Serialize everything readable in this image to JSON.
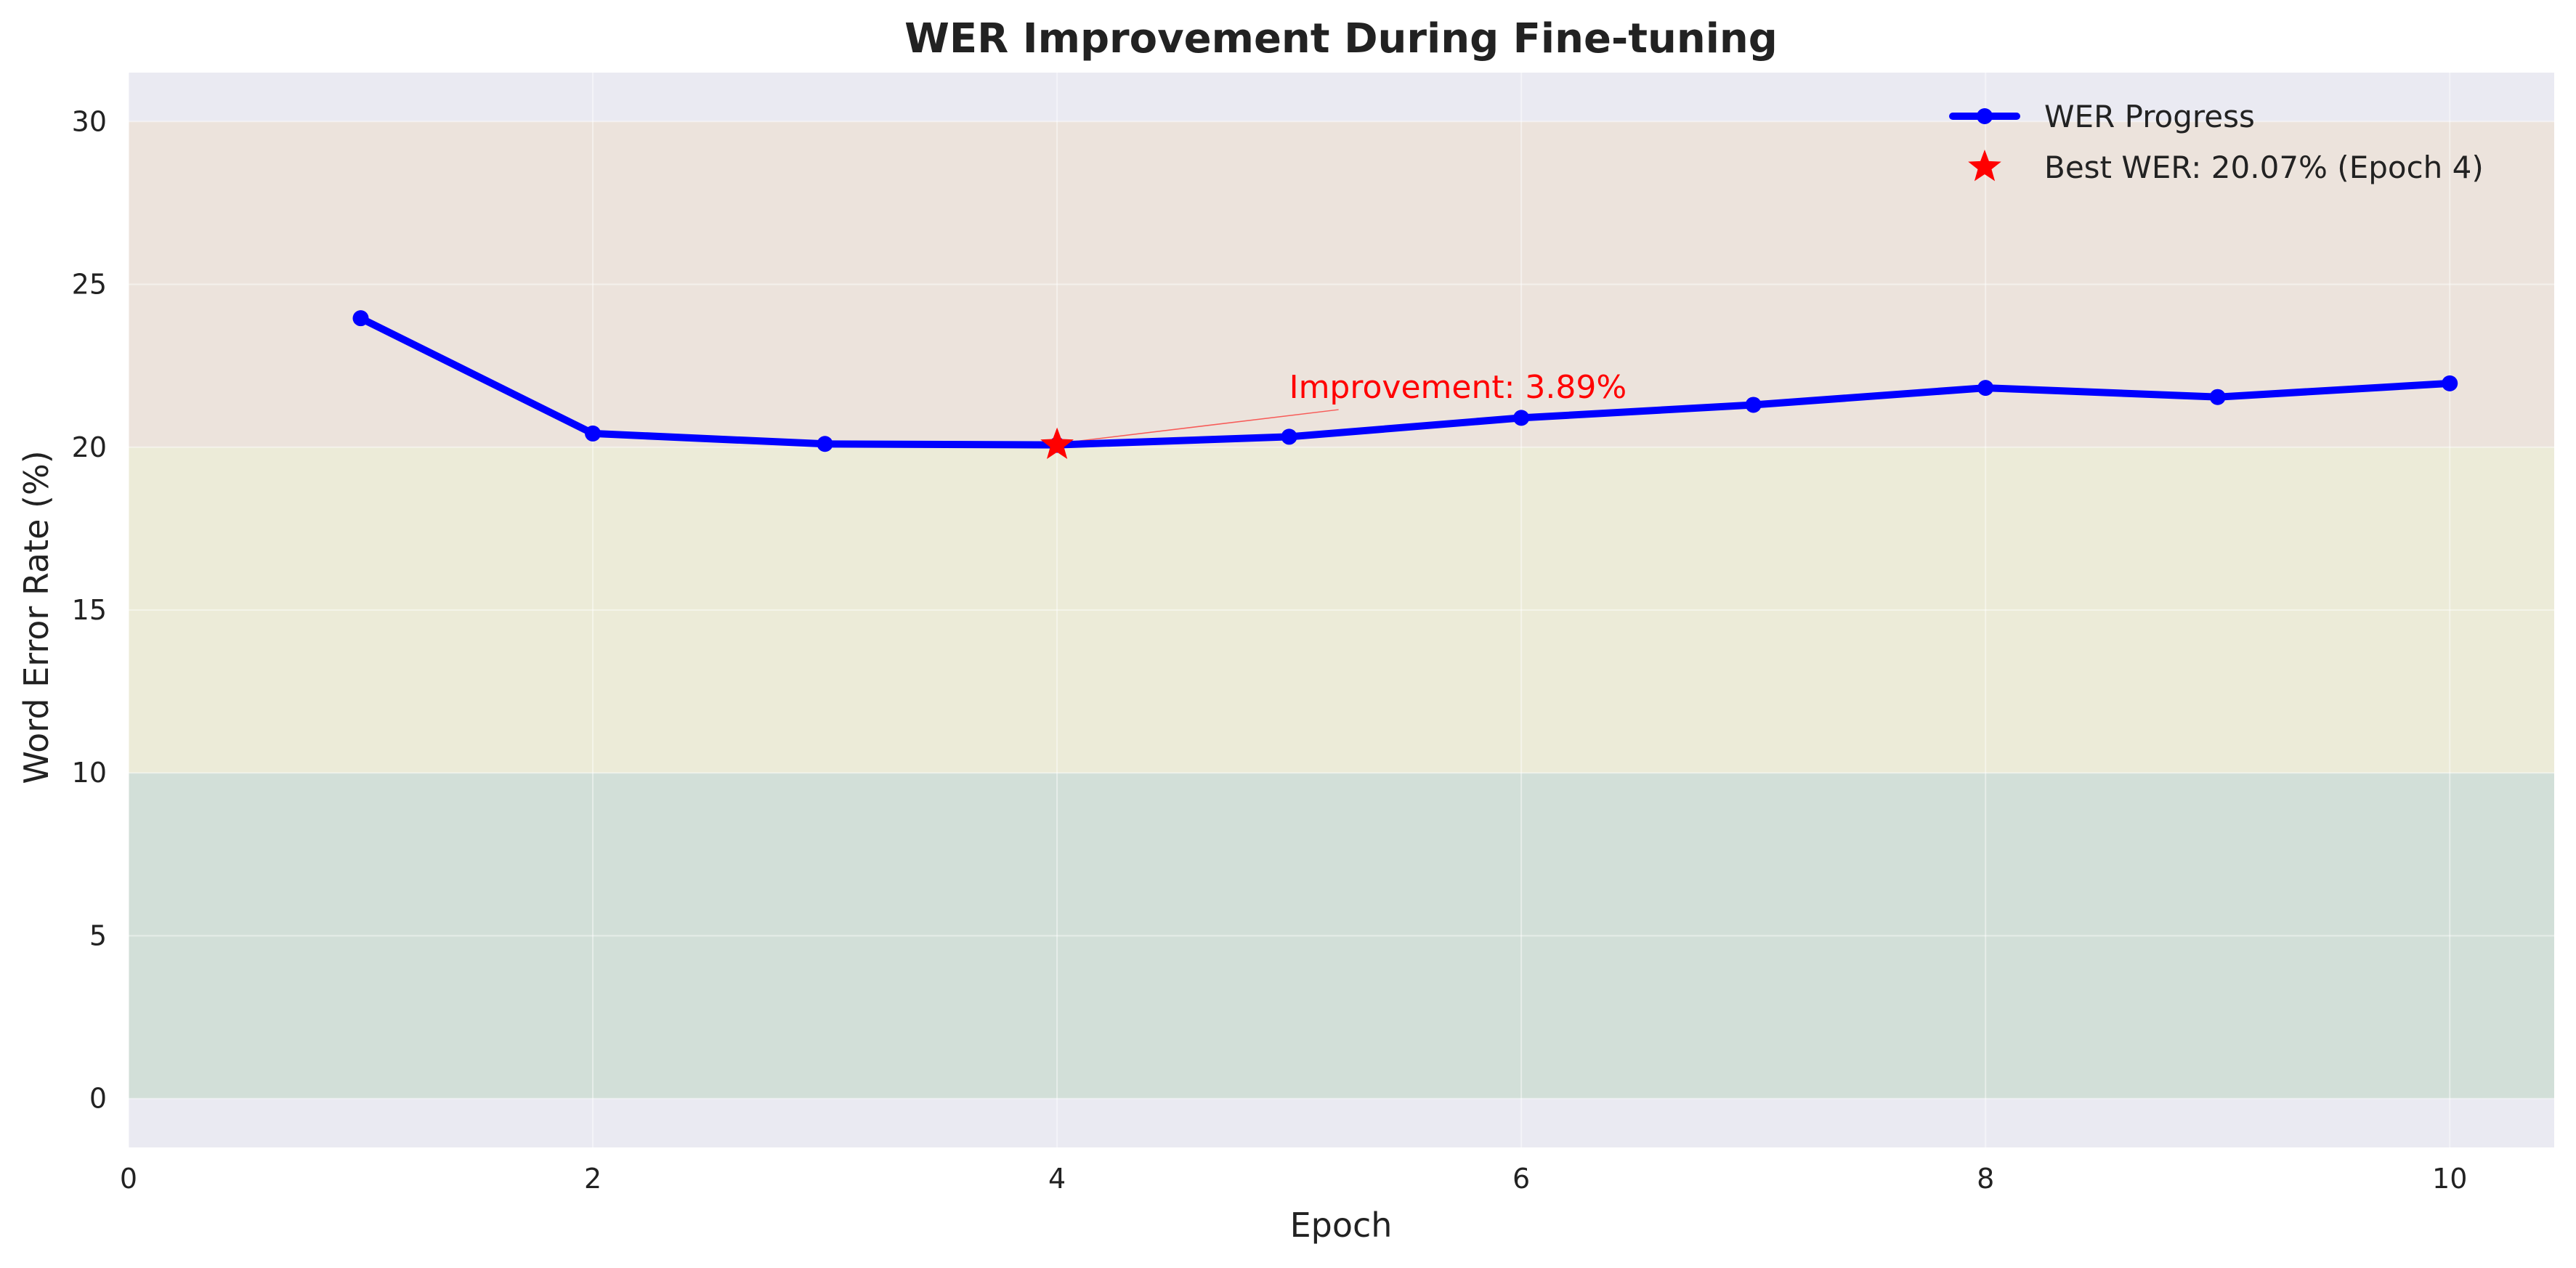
{
  "chart_data": {
    "type": "line",
    "title": "WER Improvement During Fine-tuning",
    "xlabel": "Epoch",
    "ylabel": "Word Error Rate (%)",
    "xlim": [
      0,
      10.45
    ],
    "ylim": [
      -1.5,
      31.5
    ],
    "xticks": [
      0,
      2,
      4,
      6,
      8,
      10
    ],
    "yticks": [
      0,
      5,
      10,
      15,
      20,
      25,
      30
    ],
    "grid": true,
    "legend_position": "top-right",
    "background_color": "#eaeaf2",
    "bands": [
      {
        "from": 0,
        "to": 10,
        "color": "#d2dfd8"
      },
      {
        "from": 10,
        "to": 20,
        "color": "#ecebd8"
      },
      {
        "from": 20,
        "to": 30,
        "color": "#ece3dc"
      }
    ],
    "series": [
      {
        "name": "WER Progress",
        "color": "#0000ff",
        "x": [
          1,
          2,
          3,
          4,
          5,
          6,
          7,
          8,
          9,
          10
        ],
        "y": [
          23.96,
          20.42,
          20.1,
          20.07,
          20.32,
          20.9,
          21.3,
          21.82,
          21.54,
          21.96
        ]
      }
    ],
    "best_point": {
      "label": "Best WER: 20.07% (Epoch 4)",
      "x": 4,
      "y": 20.07,
      "color": "#ff0000",
      "marker": "star"
    },
    "annotation": {
      "text": "Improvement: 3.89%",
      "color": "#ff0000",
      "point": {
        "x": 4,
        "y": 20.07
      },
      "text_at": {
        "x": 5,
        "y": 22.0
      }
    }
  }
}
